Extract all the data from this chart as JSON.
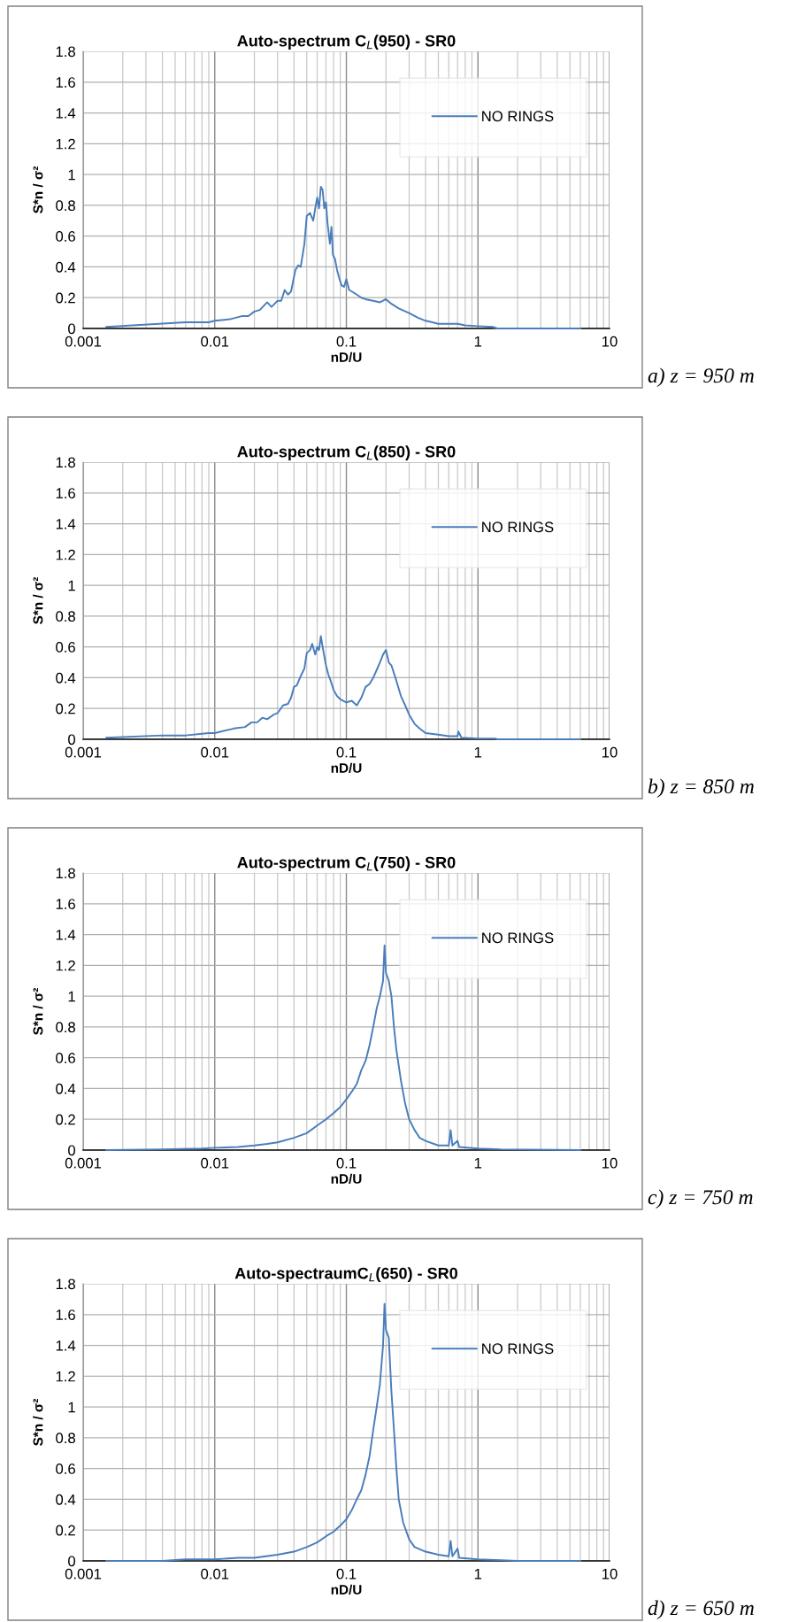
{
  "chart_data": [
    {
      "type": "line",
      "title": "Auto-spectrum C$_{L}$(950) - SR0",
      "xlabel": "nD/U",
      "ylabel": "S*n / σ²",
      "log": "x",
      "grid": true,
      "legend": "top right",
      "marker": "none",
      "line_style": "solid",
      "xlim": [
        0.001,
        10
      ],
      "xticks": [
        0.001,
        0.01,
        0.1,
        1,
        10
      ],
      "ylim": [
        0,
        1.8
      ],
      "yticks": [
        0,
        0.2,
        0.4,
        0.6,
        0.8,
        1,
        1.2,
        1.4,
        1.6,
        1.8
      ],
      "annotations": [
        "a) z = 950 m"
      ],
      "series": [
        {
          "name": "NO RINGS",
          "color": "#4a7ebb",
          "x": [
            0.0015,
            0.006,
            0.009,
            0.01,
            0.013,
            0.016,
            0.018,
            0.02,
            0.022,
            0.025,
            0.027,
            0.03,
            0.032,
            0.034,
            0.036,
            0.038,
            0.041,
            0.043,
            0.045,
            0.048,
            0.05,
            0.053,
            0.056,
            0.058,
            0.06,
            0.062,
            0.064,
            0.066,
            0.068,
            0.07,
            0.072,
            0.075,
            0.077,
            0.079,
            0.082,
            0.085,
            0.088,
            0.092,
            0.096,
            0.1,
            0.105,
            0.11,
            0.12,
            0.13,
            0.14,
            0.16,
            0.18,
            0.2,
            0.22,
            0.25,
            0.3,
            0.35,
            0.4,
            0.45,
            0.5,
            0.6,
            0.7,
            0.8,
            1,
            1.3,
            1.4,
            2,
            6
          ],
          "values": [
            0.01,
            0.04,
            0.04,
            0.05,
            0.06,
            0.08,
            0.08,
            0.11,
            0.12,
            0.17,
            0.14,
            0.18,
            0.18,
            0.25,
            0.22,
            0.24,
            0.38,
            0.41,
            0.4,
            0.55,
            0.73,
            0.75,
            0.7,
            0.78,
            0.85,
            0.78,
            0.92,
            0.9,
            0.78,
            0.82,
            0.68,
            0.55,
            0.66,
            0.48,
            0.45,
            0.38,
            0.33,
            0.28,
            0.27,
            0.32,
            0.25,
            0.24,
            0.22,
            0.2,
            0.19,
            0.18,
            0.17,
            0.19,
            0.16,
            0.13,
            0.1,
            0.07,
            0.05,
            0.04,
            0.03,
            0.03,
            0.03,
            0.02,
            0.015,
            0.01,
            0,
            0,
            0
          ]
        }
      ]
    },
    {
      "type": "line",
      "title": "Auto-spectrum C$_{L}$(850) - SR0",
      "xlabel": "nD/U",
      "ylabel": "S*n / σ²",
      "log": "x",
      "grid": true,
      "legend": "top right",
      "marker": "none",
      "line_style": "solid",
      "xlim": [
        0.001,
        10
      ],
      "xticks": [
        0.001,
        0.01,
        0.1,
        1,
        10
      ],
      "ylim": [
        0,
        1.8
      ],
      "yticks": [
        0,
        0.2,
        0.4,
        0.6,
        0.8,
        1,
        1.2,
        1.4,
        1.6,
        1.8
      ],
      "annotations": [
        "b) z = 850 m"
      ],
      "series": [
        {
          "name": "NO RINGS",
          "color": "#4a7ebb",
          "x": [
            0.0015,
            0.004,
            0.006,
            0.009,
            0.01,
            0.014,
            0.017,
            0.019,
            0.021,
            0.023,
            0.025,
            0.028,
            0.03,
            0.033,
            0.036,
            0.038,
            0.04,
            0.042,
            0.045,
            0.048,
            0.05,
            0.053,
            0.055,
            0.058,
            0.06,
            0.062,
            0.064,
            0.066,
            0.07,
            0.073,
            0.076,
            0.08,
            0.085,
            0.09,
            0.1,
            0.11,
            0.12,
            0.13,
            0.14,
            0.15,
            0.16,
            0.17,
            0.18,
            0.19,
            0.2,
            0.21,
            0.22,
            0.24,
            0.26,
            0.28,
            0.3,
            0.33,
            0.36,
            0.4,
            0.5,
            0.6,
            0.7,
            0.71,
            0.75,
            1,
            1.35,
            1.4,
            6
          ],
          "values": [
            0.01,
            0.025,
            0.025,
            0.04,
            0.04,
            0.07,
            0.08,
            0.11,
            0.11,
            0.14,
            0.13,
            0.16,
            0.17,
            0.22,
            0.23,
            0.27,
            0.34,
            0.35,
            0.41,
            0.46,
            0.56,
            0.58,
            0.62,
            0.55,
            0.6,
            0.58,
            0.67,
            0.6,
            0.48,
            0.42,
            0.38,
            0.32,
            0.28,
            0.26,
            0.24,
            0.25,
            0.22,
            0.27,
            0.34,
            0.36,
            0.4,
            0.45,
            0.5,
            0.55,
            0.58,
            0.5,
            0.48,
            0.38,
            0.28,
            0.22,
            0.16,
            0.1,
            0.07,
            0.04,
            0.03,
            0.02,
            0.02,
            0.05,
            0.01,
            0.005,
            0.005,
            0,
            0
          ]
        }
      ]
    },
    {
      "type": "line",
      "title": "Auto-spectrum C$_{L}$(750) - SR0",
      "xlabel": "nD/U",
      "ylabel": "S*n / σ²",
      "log": "x",
      "grid": true,
      "legend": "top right",
      "marker": "none",
      "line_style": "solid",
      "xlim": [
        0.001,
        10
      ],
      "xticks": [
        0.001,
        0.01,
        0.1,
        1,
        10
      ],
      "ylim": [
        0,
        1.8
      ],
      "yticks": [
        0,
        0.2,
        0.4,
        0.6,
        0.8,
        1,
        1.2,
        1.4,
        1.6,
        1.8
      ],
      "annotations": [
        "c) z = 750 m"
      ],
      "series": [
        {
          "name": "NO RINGS",
          "color": "#4a7ebb",
          "x": [
            0.0015,
            0.004,
            0.008,
            0.01,
            0.015,
            0.02,
            0.025,
            0.03,
            0.04,
            0.05,
            0.06,
            0.07,
            0.08,
            0.09,
            0.1,
            0.11,
            0.12,
            0.13,
            0.14,
            0.15,
            0.16,
            0.17,
            0.18,
            0.19,
            0.195,
            0.2,
            0.21,
            0.22,
            0.23,
            0.24,
            0.26,
            0.28,
            0.3,
            0.33,
            0.36,
            0.4,
            0.5,
            0.6,
            0.62,
            0.64,
            0.7,
            0.72,
            1,
            1.5,
            6
          ],
          "values": [
            0,
            0.005,
            0.01,
            0.015,
            0.02,
            0.03,
            0.04,
            0.05,
            0.08,
            0.11,
            0.16,
            0.2,
            0.24,
            0.28,
            0.33,
            0.38,
            0.43,
            0.52,
            0.58,
            0.68,
            0.8,
            0.92,
            1.0,
            1.1,
            1.33,
            1.15,
            1.1,
            1.0,
            0.8,
            0.65,
            0.45,
            0.3,
            0.2,
            0.13,
            0.08,
            0.06,
            0.03,
            0.03,
            0.13,
            0.03,
            0.06,
            0.02,
            0.01,
            0.005,
            0
          ]
        }
      ]
    },
    {
      "type": "line",
      "title": "Auto-spectraumC$_{L}$(650) - SR0",
      "xlabel": "nD/U",
      "ylabel": "S*n / σ²",
      "log": "x",
      "grid": true,
      "legend": "top right",
      "marker": "none",
      "line_style": "solid",
      "xlim": [
        0.001,
        10
      ],
      "xticks": [
        0.001,
        0.01,
        0.1,
        1,
        10
      ],
      "ylim": [
        0,
        1.8
      ],
      "yticks": [
        0,
        0.2,
        0.4,
        0.6,
        0.8,
        1,
        1.2,
        1.4,
        1.6,
        1.8
      ],
      "annotations": [
        "d) z = 650 m"
      ],
      "series": [
        {
          "name": "NO RINGS",
          "color": "#4a7ebb",
          "x": [
            0.0015,
            0.004,
            0.006,
            0.01,
            0.015,
            0.02,
            0.03,
            0.04,
            0.05,
            0.06,
            0.07,
            0.08,
            0.09,
            0.1,
            0.11,
            0.12,
            0.13,
            0.14,
            0.15,
            0.16,
            0.17,
            0.18,
            0.19,
            0.195,
            0.2,
            0.21,
            0.22,
            0.23,
            0.24,
            0.25,
            0.27,
            0.3,
            0.33,
            0.4,
            0.5,
            0.6,
            0.62,
            0.64,
            0.7,
            0.72,
            1,
            1.5,
            2,
            6
          ],
          "values": [
            0,
            0,
            0.01,
            0.01,
            0.02,
            0.02,
            0.04,
            0.06,
            0.09,
            0.12,
            0.16,
            0.19,
            0.23,
            0.27,
            0.33,
            0.4,
            0.46,
            0.56,
            0.68,
            0.85,
            1.0,
            1.15,
            1.4,
            1.67,
            1.5,
            1.45,
            1.1,
            0.85,
            0.6,
            0.4,
            0.25,
            0.14,
            0.09,
            0.06,
            0.04,
            0.03,
            0.13,
            0.03,
            0.08,
            0.02,
            0.01,
            0.005,
            0,
            0
          ]
        }
      ]
    }
  ]
}
